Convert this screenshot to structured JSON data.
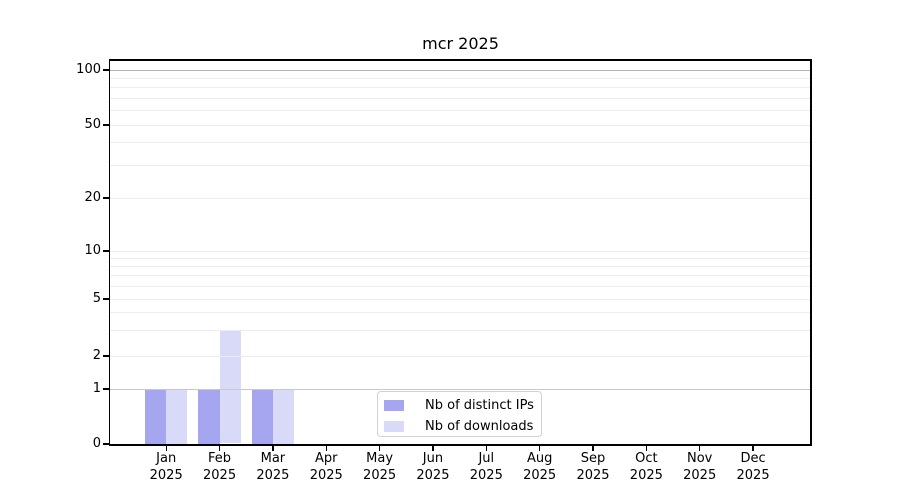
{
  "chart_data": {
    "type": "bar",
    "title": "mcr 2025",
    "categories": [
      "Jan 2025",
      "Feb 2025",
      "Mar 2025",
      "Apr 2025",
      "May 2025",
      "Jun 2025",
      "Jul 2025",
      "Aug 2025",
      "Sep 2025",
      "Oct 2025",
      "Nov 2025",
      "Dec 2025"
    ],
    "series": [
      {
        "name": "Nb of distinct IPs",
        "color": "#a5a5f0",
        "values": [
          1,
          1,
          1,
          0,
          0,
          0,
          0,
          0,
          0,
          0,
          0,
          0
        ]
      },
      {
        "name": "Nb of downloads",
        "color": "#d9d9f8",
        "values": [
          1,
          3,
          1,
          0,
          0,
          0,
          0,
          0,
          0,
          0,
          0,
          0
        ]
      }
    ],
    "xlabel": "",
    "ylabel": "",
    "y_ticks": [
      0,
      1,
      2,
      5,
      10,
      20,
      50,
      100
    ],
    "y_minor_gridlines": [
      3,
      4,
      6,
      7,
      8,
      9,
      30,
      40,
      60,
      70,
      80,
      90
    ],
    "yscale": "log-above-1-linear-below",
    "ylim": [
      0,
      115
    ],
    "grid": "horizontal",
    "legend_position": "inside-bottom-center"
  },
  "colors": {
    "background": "#ffffff",
    "axis": "#000000",
    "grid_minor": "#ececec",
    "grid_major": "#ececec",
    "grid_at_1": "#c8c8c8",
    "grid_at_100": "#b3b3b3",
    "legend_border": "#d2d2d2"
  }
}
